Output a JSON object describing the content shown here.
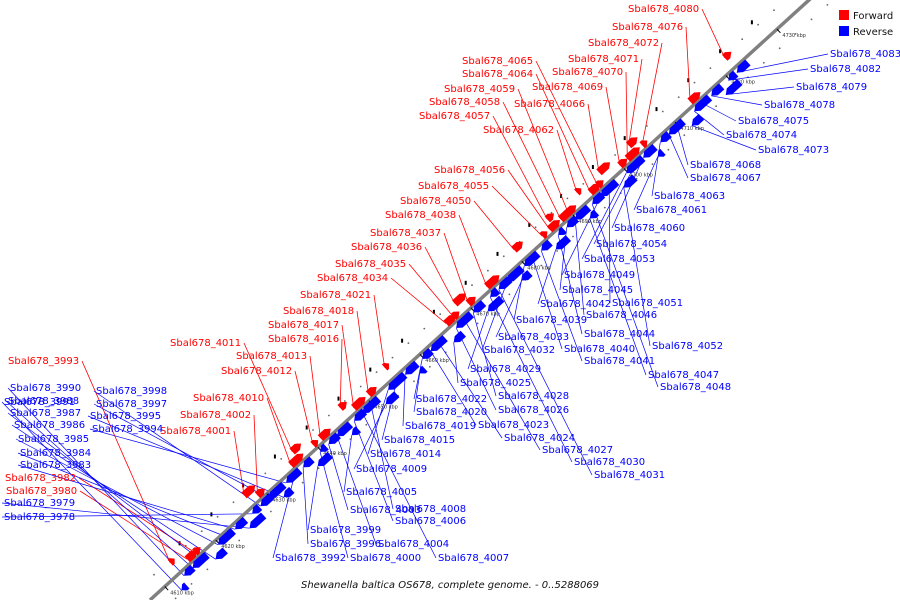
{
  "colors": {
    "forward": "#ff0000",
    "reverse": "#0000ff",
    "genome_line": "#808080",
    "tick_mark": "#000000"
  },
  "legend": {
    "forward_label": "Forward",
    "reverse_label": "Reverse"
  },
  "caption": "Shewanella baltica OS678, complete genome. - 0..5288069",
  "axis": {
    "tick_unit": "kbp",
    "tick_values": [
      4610,
      4620,
      4630,
      4640,
      4650,
      4660,
      4670,
      4680,
      4690,
      4700,
      4710,
      4720,
      4730
    ]
  },
  "forward_genes": [
    "Sbal678_3993",
    "Sbal678_3980",
    "Sbal678_3982",
    "Sbal678_4001",
    "Sbal678_4002",
    "Sbal678_4010",
    "Sbal678_4011",
    "Sbal678_4012",
    "Sbal678_4013",
    "Sbal678_4016",
    "Sbal678_4017",
    "Sbal678_4018",
    "Sbal678_4021",
    "Sbal678_4034",
    "Sbal678_4035",
    "Sbal678_4036",
    "Sbal678_4037",
    "Sbal678_4038",
    "Sbal678_4050",
    "Sbal678_4055",
    "Sbal678_4056",
    "Sbal678_4057",
    "Sbal678_4058",
    "Sbal678_4059",
    "Sbal678_4062",
    "Sbal678_4064",
    "Sbal678_4065",
    "Sbal678_4066",
    "Sbal678_4069",
    "Sbal678_4070",
    "Sbal678_4071",
    "Sbal678_4072",
    "Sbal678_4076",
    "Sbal678_4080"
  ],
  "reverse_genes": [
    "Sbal678_3991",
    "Sbal678_3990",
    "Sbal678_3988",
    "Sbal678_3987",
    "Sbal678_3986",
    "Sbal678_3985",
    "Sbal678_3984",
    "Sbal678_3983",
    "Sbal678_3979",
    "Sbal678_3978",
    "Sbal678_3998",
    "Sbal678_3997",
    "Sbal678_3995",
    "Sbal678_3994",
    "Sbal678_3992",
    "Sbal678_3996",
    "Sbal678_3999",
    "Sbal678_4000",
    "Sbal678_4003",
    "Sbal678_4004",
    "Sbal678_4005",
    "Sbal678_4006",
    "Sbal678_4007",
    "Sbal678_4008",
    "Sbal678_4009",
    "Sbal678_4014",
    "Sbal678_4015",
    "Sbal678_4019",
    "Sbal678_4020",
    "Sbal678_4022",
    "Sbal678_4023",
    "Sbal678_4024",
    "Sbal678_4025",
    "Sbal678_4026",
    "Sbal678_4027",
    "Sbal678_4028",
    "Sbal678_4029",
    "Sbal678_4030",
    "Sbal678_4031",
    "Sbal678_4032",
    "Sbal678_4033",
    "Sbal678_4039",
    "Sbal678_4040",
    "Sbal678_4041",
    "Sbal678_4042",
    "Sbal678_4044",
    "Sbal678_4045",
    "Sbal678_4046",
    "Sbal678_4047",
    "Sbal678_4048",
    "Sbal678_4049",
    "Sbal678_4051",
    "Sbal678_4052",
    "Sbal678_4053",
    "Sbal678_4054",
    "Sbal678_4060",
    "Sbal678_4061",
    "Sbal678_4063",
    "Sbal678_4067",
    "Sbal678_4068",
    "Sbal678_4073",
    "Sbal678_4074",
    "Sbal678_4075",
    "Sbal678_4078",
    "Sbal678_4079",
    "Sbal678_4082",
    "Sbal678_4083"
  ]
}
